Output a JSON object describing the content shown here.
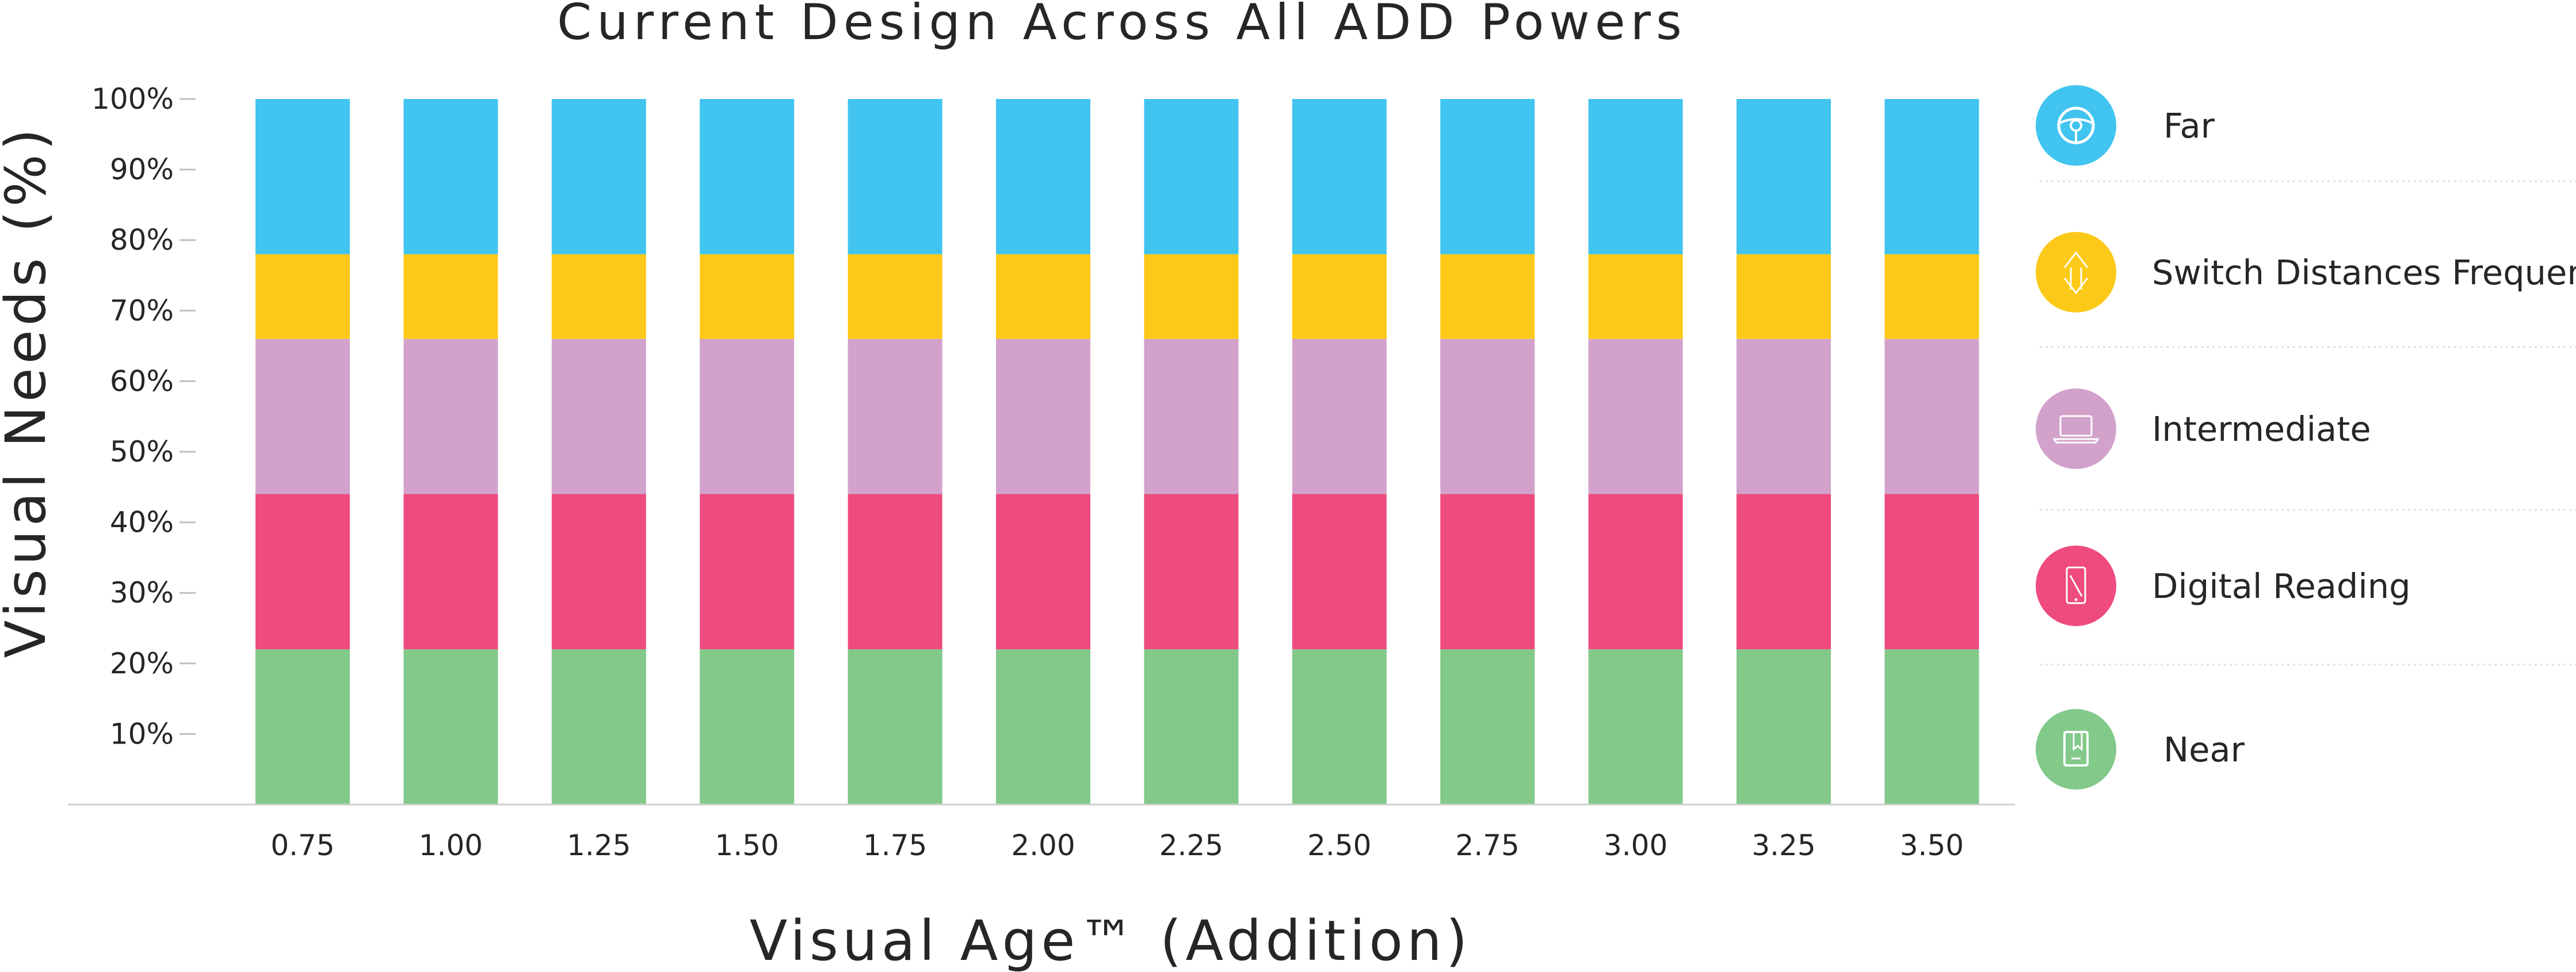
{
  "chart_data": {
    "type": "bar",
    "stacked": true,
    "title": "Current Design Across All ADD Powers",
    "xlabel": "Visual Age™ (Addition)",
    "ylabel": "Visual Needs (%)",
    "ylim": [
      0,
      100
    ],
    "yticks": [
      "10%",
      "20%",
      "30%",
      "40%",
      "50%",
      "60%",
      "70%",
      "80%",
      "90%",
      "100%"
    ],
    "grid": false,
    "legend_position": "right",
    "categories": [
      "0.75",
      "1.00",
      "1.25",
      "1.50",
      "1.75",
      "2.00",
      "2.25",
      "2.50",
      "2.75",
      "3.00",
      "3.25",
      "3.50"
    ],
    "series": [
      {
        "name": "Near",
        "color": "#82c98a",
        "icon": "book-icon",
        "values": [
          22,
          22,
          22,
          22,
          22,
          22,
          22,
          22,
          22,
          22,
          22,
          22
        ]
      },
      {
        "name": "Digital Reading",
        "color": "#ee4b7e",
        "icon": "smartphone-icon",
        "values": [
          22,
          22,
          22,
          22,
          22,
          22,
          22,
          22,
          22,
          22,
          22,
          22
        ]
      },
      {
        "name": "Intermediate",
        "color": "#d2a2cb",
        "icon": "laptop-icon",
        "values": [
          22,
          22,
          22,
          22,
          22,
          22,
          22,
          22,
          22,
          22,
          22,
          22
        ]
      },
      {
        "name": "Switch Distances Frequency",
        "color": "#fdc918",
        "icon": "switch-arrows-icon",
        "values": [
          12,
          12,
          12,
          12,
          12,
          12,
          12,
          12,
          12,
          12,
          12,
          12
        ]
      },
      {
        "name": "Far",
        "color": "#41c4ef",
        "icon": "steering-wheel-icon",
        "values": [
          22,
          22,
          22,
          22,
          22,
          22,
          22,
          22,
          22,
          22,
          22,
          22
        ]
      }
    ],
    "legend_order": [
      "Far",
      "Switch Distances Frequency",
      "Intermediate",
      "Digital Reading",
      "Near"
    ]
  }
}
